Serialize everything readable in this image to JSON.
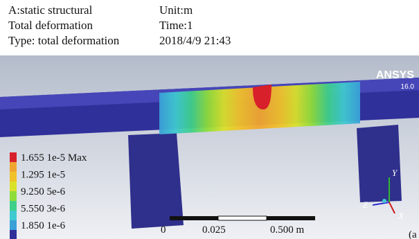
{
  "header": {
    "analysis": "A:static structural",
    "unit": "Unit:m",
    "result": "Total deformation",
    "time": "Time:1",
    "type": "Type: total deformation",
    "date": "2018/4/9 21:43"
  },
  "logo": {
    "name": "ANSYS",
    "version": "16.0"
  },
  "legend": {
    "entries": [
      "1.655 1e-5 Max",
      "1.295 1e-5",
      "9.250 5e-6",
      "5.550 3e-6",
      "1.850 1e-6"
    ]
  },
  "scale_bar": {
    "labels": [
      "0",
      "0.025",
      "0.500 m"
    ]
  },
  "triad": {
    "labels": [
      "Y",
      "Z",
      "X"
    ]
  },
  "figure_label": "(a"
}
